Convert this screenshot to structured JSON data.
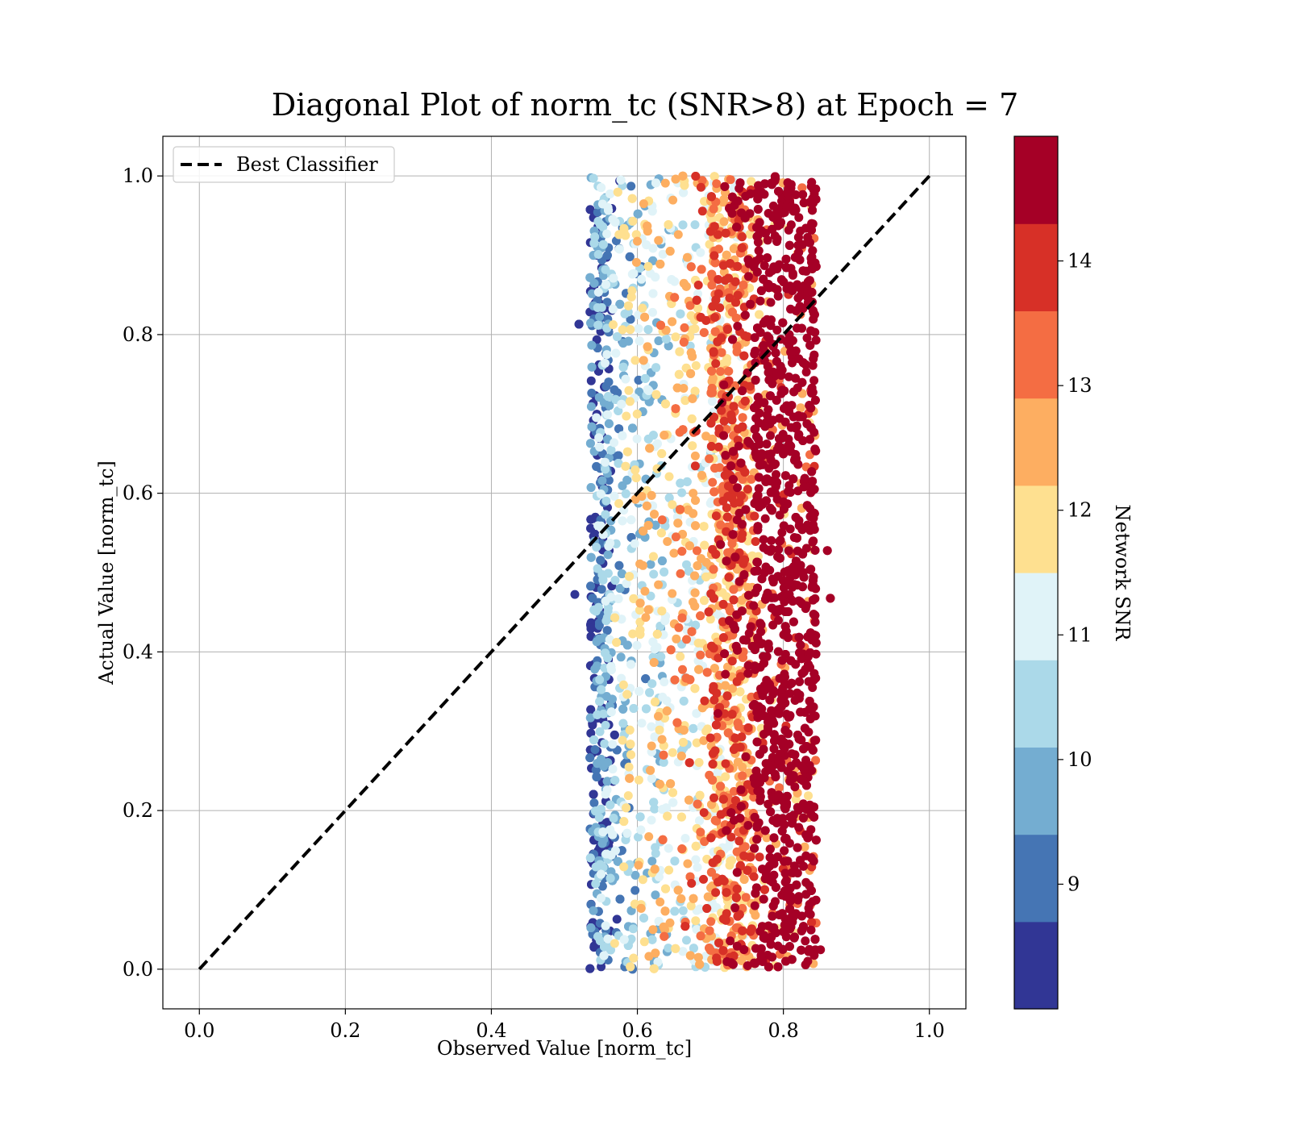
{
  "chart_data": {
    "type": "scatter",
    "title": "Diagonal Plot of norm_tc (SNR>8) at Epoch = 7",
    "xlabel": "Observed Value [norm_tc]",
    "ylabel": "Actual Value [norm_tc]",
    "xlim": [
      -0.05,
      1.05
    ],
    "ylim": [
      -0.05,
      1.05
    ],
    "grid": true,
    "x_ticks": [
      "0.0",
      "0.2",
      "0.4",
      "0.6",
      "0.8",
      "1.0"
    ],
    "y_ticks": [
      "0.0",
      "0.2",
      "0.4",
      "0.6",
      "0.8",
      "1.0"
    ],
    "legend": {
      "placement": "top-left",
      "entries": [
        {
          "label": "Best Classifier",
          "style": "dashed",
          "color": "#000000"
        }
      ]
    },
    "reference_line": {
      "name": "Best Classifier",
      "x": [
        0.0,
        1.0
      ],
      "y": [
        0.0,
        1.0
      ]
    },
    "scatter_summary": {
      "x_range": [
        0.51,
        0.87
      ],
      "y_range": [
        0.0,
        1.0
      ],
      "trend": "higher observed values carry higher Network SNR"
    },
    "colorbar": {
      "label": "Network SNR",
      "range": [
        8,
        15
      ],
      "ticks": [
        "9",
        "10",
        "11",
        "12",
        "13",
        "14"
      ],
      "colors": [
        "#313695",
        "#4575b4",
        "#74add1",
        "#abd9e9",
        "#e0f3f8",
        "#fee090",
        "#fdae61",
        "#f46d43",
        "#d73027",
        "#a50026"
      ]
    }
  }
}
